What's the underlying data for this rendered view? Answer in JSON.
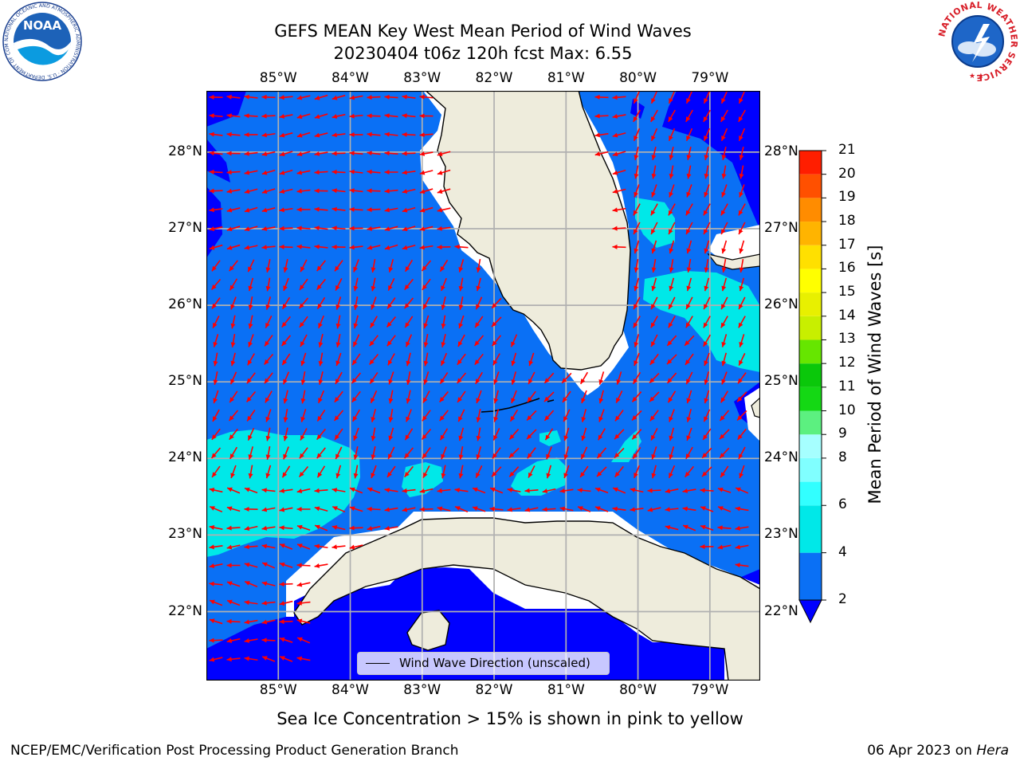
{
  "title": {
    "line1": "GEFS MEAN Key West Mean Period of Wind Waves",
    "line2": "20230404 t06z 120h fcst   Max: 6.55"
  },
  "map": {
    "lon_ticks": [
      "85°W",
      "84°W",
      "83°W",
      "82°W",
      "81°W",
      "80°W",
      "79°W"
    ],
    "lat_ticks": [
      "28°N",
      "27°N",
      "26°N",
      "25°N",
      "24°N",
      "23°N",
      "22°N"
    ],
    "lon_range": [
      -86.0,
      -78.3
    ],
    "lat_range": [
      21.1,
      28.8
    ],
    "legend_label": "Wind Wave Direction (unscaled)",
    "arrow_color": "#ff0000",
    "land_color": "#eeecdc",
    "ocean_color": "#0a70f5"
  },
  "colorbar": {
    "label": "Mean Period of Wind Waves [s]",
    "ticks": [
      "21",
      "20",
      "19",
      "18",
      "17",
      "16",
      "15",
      "14",
      "13",
      "12",
      "11",
      "10",
      "9",
      "8",
      "6",
      "4",
      "2"
    ],
    "levels": [
      2,
      4,
      6,
      7,
      8,
      9,
      10,
      11,
      12,
      13,
      14,
      15,
      16,
      17,
      18,
      19,
      20,
      21
    ],
    "colors": [
      "#0a70f5",
      "#00e8e8",
      "#32ffff",
      "#80ffff",
      "#a6ffff",
      "#5cf080",
      "#14d814",
      "#0ac80a",
      "#66e600",
      "#c8ef00",
      "#e8f000",
      "#ffff00",
      "#ffe000",
      "#ffb400",
      "#ff8c00",
      "#ff5000",
      "#ff1e00"
    ],
    "extend_color": "#0000ff"
  },
  "footer": {
    "note": "Sea Ice Concentration > 15% is shown in pink to yellow",
    "left": "NCEP/EMC/Verification Post Processing Product Generation Branch",
    "date": "06 Apr 2023 on ",
    "host": "Hera"
  },
  "logos": {
    "noaa": "NOAA",
    "noaa_ring": "NATIONAL OCEANIC AND ATMOSPHERIC ADMINISTRATION · U.S. DEPARTMENT OF COMMERCE ·",
    "nws_ring": "NATIONAL WEATHER SERVICE"
  }
}
